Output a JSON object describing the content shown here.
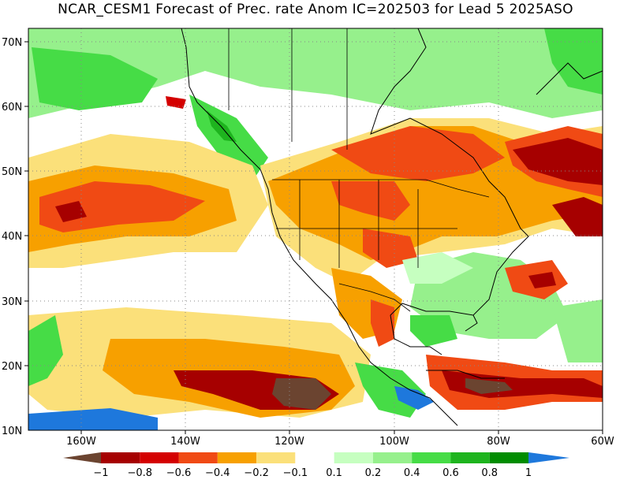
{
  "title": "NCAR_CESM1 Forecast of Prec. rate Anom IC=202503 for Lead 5 2025ASO",
  "lat_labels": [
    "70N",
    "60N",
    "50N",
    "40N",
    "30N",
    "20N",
    "10N"
  ],
  "lon_labels": [
    "160W",
    "140W",
    "120W",
    "100W",
    "80W",
    "60W"
  ],
  "legend": {
    "labels": [
      "−1",
      "−0.8",
      "−0.6",
      "−0.4",
      "−0.2",
      "−0.1",
      "0.1",
      "0.2",
      "0.4",
      "0.6",
      "0.8",
      "1"
    ],
    "colors": [
      "#6b4430",
      "#a60000",
      "#d40000",
      "#f04a14",
      "#f7a000",
      "#fbe07a",
      "#ffffff",
      "#c6ffc0",
      "#96f08c",
      "#46dc46",
      "#1eb41e",
      "#008c00",
      "#1e78dc"
    ]
  },
  "palette": {
    "brown": "#6b4430",
    "dark_red": "#a60000",
    "red": "#d40000",
    "orange_red": "#f04a14",
    "orange": "#f7a000",
    "yellow": "#fbe07a",
    "light_green": "#c6ffc0",
    "green": "#96f08c",
    "mid_green": "#46dc46",
    "dark_green": "#1eb41e",
    "blue": "#1e78dc"
  }
}
